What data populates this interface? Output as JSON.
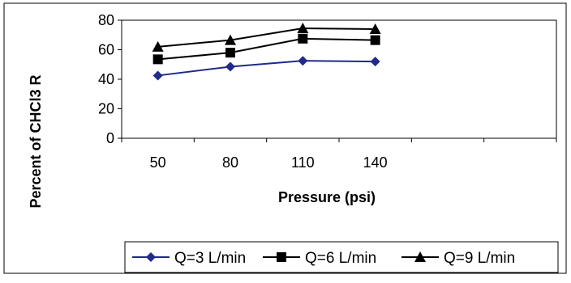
{
  "chart_data": {
    "type": "line",
    "title": "",
    "xlabel": "Pressure (psi)",
    "ylabel": "Percent of CHCl3 R",
    "categories": [
      "50",
      "80",
      "110",
      "140"
    ],
    "ylim": [
      0,
      80
    ],
    "yticks": [
      0,
      20,
      40,
      60,
      80
    ],
    "grid": false,
    "legend_position": "bottom",
    "series": [
      {
        "name": "Q=3 L/min",
        "color": "#1f2a8a",
        "marker": "diamond",
        "values": [
          42.5,
          48.5,
          52.5,
          52.0
        ]
      },
      {
        "name": "Q=6 L/min",
        "color": "#000000",
        "marker": "square",
        "values": [
          53.5,
          58.0,
          67.5,
          66.5
        ]
      },
      {
        "name": "Q=9 L/min",
        "color": "#000000",
        "marker": "triangle",
        "values": [
          62.0,
          66.5,
          74.5,
          74.0
        ]
      }
    ]
  }
}
